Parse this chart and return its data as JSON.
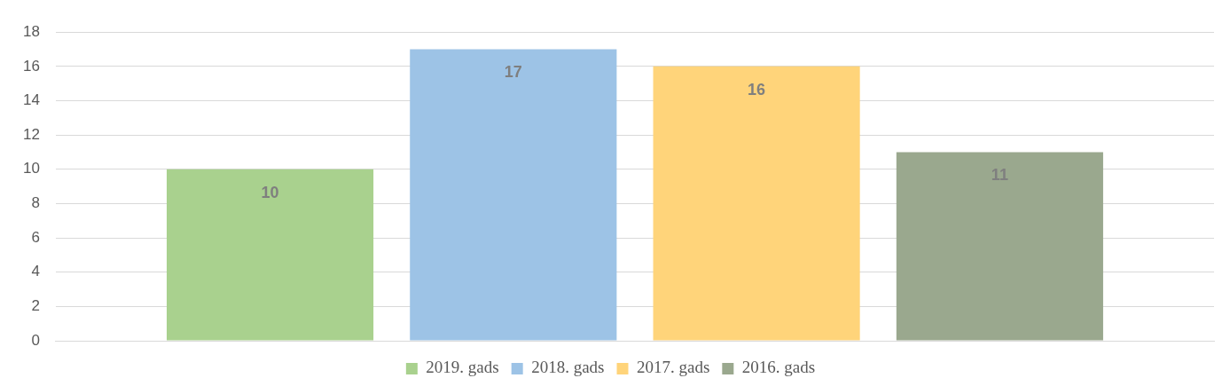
{
  "chart_data": {
    "type": "bar",
    "categories": [
      null
    ],
    "series": [
      {
        "name": "2019. gads",
        "color": "#a9d18e",
        "values": [
          10
        ]
      },
      {
        "name": "2018. gads",
        "color": "#9dc3e6",
        "values": [
          17
        ]
      },
      {
        "name": "2017. gads",
        "color": "#ffd47a",
        "values": [
          16
        ]
      },
      {
        "name": "2016. gads",
        "color": "#9aa88e",
        "values": [
          11
        ]
      }
    ],
    "ylim": [
      0,
      18
    ],
    "yticks": [
      0,
      2,
      4,
      6,
      8,
      10,
      12,
      14,
      16,
      18
    ],
    "grid": "y",
    "legend": "bottom",
    "data_labels": true
  }
}
